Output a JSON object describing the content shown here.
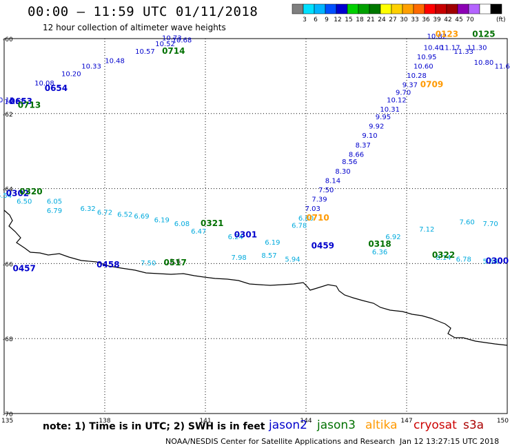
{
  "header": {
    "title": "00:00 – 11:59 UTC 01/11/2018",
    "subtitle": "12 hour collection of altimeter wave heights"
  },
  "legend": {
    "units": "(ft)",
    "colors": [
      "#7f7f7f",
      "#00e0ff",
      "#00b4ff",
      "#0050ff",
      "#0000d0",
      "#00d000",
      "#00a000",
      "#007800",
      "#ffff00",
      "#ffd000",
      "#ffa000",
      "#ff6a00",
      "#ff0000",
      "#c80000",
      "#a00000",
      "#8c00b4",
      "#b464ff",
      "#ffffff",
      "#000000"
    ],
    "labels": [
      "3",
      "6",
      "9",
      "12",
      "15",
      "18",
      "21",
      "24",
      "27",
      "30",
      "33",
      "36",
      "39",
      "42",
      "45",
      "70"
    ]
  },
  "axes": {
    "lat_labels": [
      "-60",
      "-62",
      "-64",
      "-66",
      "-68",
      "-70"
    ],
    "lon_labels": [
      "135",
      "138",
      "141",
      "144",
      "147",
      "150"
    ]
  },
  "satellites": {
    "jason2": {
      "name": "jason2",
      "color": "#0000cc"
    },
    "jason3": {
      "name": "jason3",
      "color": "#007000"
    },
    "altika": {
      "name": "altika",
      "color": "#ff9900"
    },
    "cryosat": {
      "name": "cryosat",
      "color": "#cc0000"
    },
    "s3a": {
      "name": "s3a",
      "color": "#aa0000"
    }
  },
  "footer": {
    "note": "note: 1) Time is in UTC; 2) SWH is in feet",
    "credit_left": "NOAA/NESDIS Center for Satellite Applications and Research",
    "credit_right": "Jan 12 13:27:15 UTC 2018"
  },
  "track_labels": {
    "time_marks": [
      {
        "text": "0714",
        "color": "#007000",
        "lat": -60.4,
        "lon": 140.05
      },
      {
        "text": "0654",
        "color": "#0000cc",
        "lat": -61.4,
        "lon": 136.55
      },
      {
        "text": "0653",
        "color": "#0000cc",
        "lat": -61.75,
        "lon": 135.5
      },
      {
        "text": "0713",
        "color": "#007000",
        "lat": -61.85,
        "lon": 135.75
      },
      {
        "text": "0302",
        "color": "#0000cc",
        "lat": -64.2,
        "lon": 135.4
      },
      {
        "text": "0320",
        "color": "#007000",
        "lat": -64.15,
        "lon": 135.8
      },
      {
        "text": "0321",
        "color": "#007000",
        "lat": -65.0,
        "lon": 141.2
      },
      {
        "text": "0301",
        "color": "#0000cc",
        "lat": -65.3,
        "lon": 142.2
      },
      {
        "text": "0710",
        "color": "#ff9900",
        "lat": -64.85,
        "lon": 144.35
      },
      {
        "text": "0709",
        "color": "#ff9900",
        "lat": -61.3,
        "lon": 147.75
      },
      {
        "text": "0123",
        "color": "#ff9900",
        "lat": -59.95,
        "lon": 148.2
      },
      {
        "text": "0125",
        "color": "#007000",
        "lat": -59.95,
        "lon": 149.3
      },
      {
        "text": "0459",
        "color": "#0000cc",
        "lat": -65.6,
        "lon": 144.5
      },
      {
        "text": "0318",
        "color": "#007000",
        "lat": -65.55,
        "lon": 146.2
      },
      {
        "text": "0322",
        "color": "#007000",
        "lat": -65.85,
        "lon": 148.1
      },
      {
        "text": "0300",
        "color": "#0000cc",
        "lat": -66.0,
        "lon": 149.7
      },
      {
        "text": "0457",
        "color": "#0000cc",
        "lat": -66.2,
        "lon": 135.6
      },
      {
        "text": "0458",
        "color": "#0000cc",
        "lat": -66.1,
        "lon": 138.1
      },
      {
        "text": "0517",
        "color": "#007000",
        "lat": -66.05,
        "lon": 140.1
      }
    ],
    "values": [
      {
        "text": "10.73",
        "color": "#0000cc",
        "lat": -60.05,
        "lon": 140.0
      },
      {
        "text": "10.68",
        "color": "#0000cc",
        "lat": -60.1,
        "lon": 140.3
      },
      {
        "text": "10.52",
        "color": "#0000cc",
        "lat": -60.2,
        "lon": 139.8
      },
      {
        "text": "10.57",
        "color": "#0000cc",
        "lat": -60.4,
        "lon": 139.2
      },
      {
        "text": "10.48",
        "color": "#0000cc",
        "lat": -60.65,
        "lon": 138.3
      },
      {
        "text": "10.33",
        "color": "#0000cc",
        "lat": -60.8,
        "lon": 137.6
      },
      {
        "text": "10.20",
        "color": "#0000cc",
        "lat": -61.0,
        "lon": 137.0
      },
      {
        "text": "10.08",
        "color": "#0000cc",
        "lat": -61.25,
        "lon": 136.2
      },
      {
        "text": "10.15",
        "color": "#0000cc",
        "lat": -61.7,
        "lon": 135.0
      },
      {
        "text": "10.83",
        "color": "#0000cc",
        "lat": -61.75,
        "lon": 135.3
      },
      {
        "text": "6.54",
        "color": "#00aadd",
        "lat": -64.25,
        "lon": 135.0
      },
      {
        "text": "6.50",
        "color": "#00aadd",
        "lat": -64.4,
        "lon": 135.6
      },
      {
        "text": "6.05",
        "color": "#00aadd",
        "lat": -64.4,
        "lon": 136.5
      },
      {
        "text": "6.79",
        "color": "#00aadd",
        "lat": -64.65,
        "lon": 136.5
      },
      {
        "text": "6.32",
        "color": "#00aadd",
        "lat": -64.6,
        "lon": 137.5
      },
      {
        "text": "6.72",
        "color": "#00aadd",
        "lat": -64.7,
        "lon": 138.0
      },
      {
        "text": "6.52",
        "color": "#00aadd",
        "lat": -64.75,
        "lon": 138.6
      },
      {
        "text": "6.69",
        "color": "#00aadd",
        "lat": -64.8,
        "lon": 139.1
      },
      {
        "text": "6.19",
        "color": "#00aadd",
        "lat": -64.9,
        "lon": 139.7
      },
      {
        "text": "6.08",
        "color": "#00aadd",
        "lat": -65.0,
        "lon": 140.3
      },
      {
        "text": "6.47",
        "color": "#00aadd",
        "lat": -65.2,
        "lon": 140.8
      },
      {
        "text": "6.24",
        "color": "#00aadd",
        "lat": -65.35,
        "lon": 141.9
      },
      {
        "text": "6.19",
        "color": "#00aadd",
        "lat": -65.5,
        "lon": 143.0
      },
      {
        "text": "6.78",
        "color": "#00aadd",
        "lat": -65.05,
        "lon": 143.8
      },
      {
        "text": "6.80",
        "color": "#00aadd",
        "lat": -64.85,
        "lon": 144.0
      },
      {
        "text": "7.03",
        "color": "#0000cc",
        "lat": -64.6,
        "lon": 144.2
      },
      {
        "text": "7.39",
        "color": "#0000cc",
        "lat": -64.35,
        "lon": 144.4
      },
      {
        "text": "7.50",
        "color": "#0000cc",
        "lat": -64.1,
        "lon": 144.6
      },
      {
        "text": "8.14",
        "color": "#0000cc",
        "lat": -63.85,
        "lon": 144.8
      },
      {
        "text": "8.30",
        "color": "#0000cc",
        "lat": -63.6,
        "lon": 145.1
      },
      {
        "text": "8.56",
        "color": "#0000cc",
        "lat": -63.35,
        "lon": 145.3
      },
      {
        "text": "8.66",
        "color": "#0000cc",
        "lat": -63.15,
        "lon": 145.5
      },
      {
        "text": "8.37",
        "color": "#0000cc",
        "lat": -62.9,
        "lon": 145.7
      },
      {
        "text": "9.10",
        "color": "#0000cc",
        "lat": -62.65,
        "lon": 145.9
      },
      {
        "text": "9.92",
        "color": "#0000cc",
        "lat": -62.4,
        "lon": 146.1
      },
      {
        "text": "9.95",
        "color": "#0000cc",
        "lat": -62.15,
        "lon": 146.3
      },
      {
        "text": "10.31",
        "color": "#0000cc",
        "lat": -61.95,
        "lon": 146.5
      },
      {
        "text": "10.12",
        "color": "#0000cc",
        "lat": -61.7,
        "lon": 146.7
      },
      {
        "text": "9.70",
        "color": "#0000cc",
        "lat": -61.5,
        "lon": 146.9
      },
      {
        "text": "9.37",
        "color": "#0000cc",
        "lat": -61.3,
        "lon": 147.1
      },
      {
        "text": "10.28",
        "color": "#0000cc",
        "lat": -61.05,
        "lon": 147.3
      },
      {
        "text": "10.60",
        "color": "#0000cc",
        "lat": -60.8,
        "lon": 147.5
      },
      {
        "text": "10.95",
        "color": "#0000cc",
        "lat": -60.55,
        "lon": 147.6
      },
      {
        "text": "10.40",
        "color": "#0000cc",
        "lat": -60.3,
        "lon": 147.8
      },
      {
        "text": "10.82",
        "color": "#0000cc",
        "lat": -60.0,
        "lon": 147.9
      },
      {
        "text": "11.17",
        "color": "#0000cc",
        "lat": -60.3,
        "lon": 148.3
      },
      {
        "text": "11.30",
        "color": "#0000cc",
        "lat": -60.3,
        "lon": 149.1
      },
      {
        "text": "11.33",
        "color": "#0000cc",
        "lat": -60.4,
        "lon": 148.7
      },
      {
        "text": "10.80",
        "color": "#0000cc",
        "lat": -60.7,
        "lon": 149.3
      },
      {
        "text": "11.6",
        "color": "#0000cc",
        "lat": -60.8,
        "lon": 149.85
      },
      {
        "text": "7.60",
        "color": "#00aadd",
        "lat": -64.95,
        "lon": 148.8
      },
      {
        "text": "7.70",
        "color": "#00aadd",
        "lat": -65.0,
        "lon": 149.5
      },
      {
        "text": "7.12",
        "color": "#00aadd",
        "lat": -65.15,
        "lon": 147.6
      },
      {
        "text": "6.92",
        "color": "#00aadd",
        "lat": -65.35,
        "lon": 146.6
      },
      {
        "text": "6.36",
        "color": "#00aadd",
        "lat": -65.75,
        "lon": 146.2
      },
      {
        "text": "7.50",
        "color": "#00aadd",
        "lat": -66.05,
        "lon": 139.3
      },
      {
        "text": "7.98",
        "color": "#00aadd",
        "lat": -65.9,
        "lon": 142.0
      },
      {
        "text": "8.57",
        "color": "#00aadd",
        "lat": -65.85,
        "lon": 142.9
      },
      {
        "text": "5.94",
        "color": "#00aadd",
        "lat": -65.95,
        "lon": 143.6
      },
      {
        "text": "2.6",
        "color": "#404040",
        "lat": -66.0,
        "lon": 140.1
      },
      {
        "text": "6.78",
        "color": "#00aadd",
        "lat": -65.95,
        "lon": 148.7
      },
      {
        "text": "5.54",
        "color": "#00aadd",
        "lat": -66.0,
        "lon": 149.5
      },
      {
        "text": "8.14",
        "color": "#00aadd",
        "lat": -65.9,
        "lon": 148.1
      }
    ]
  }
}
